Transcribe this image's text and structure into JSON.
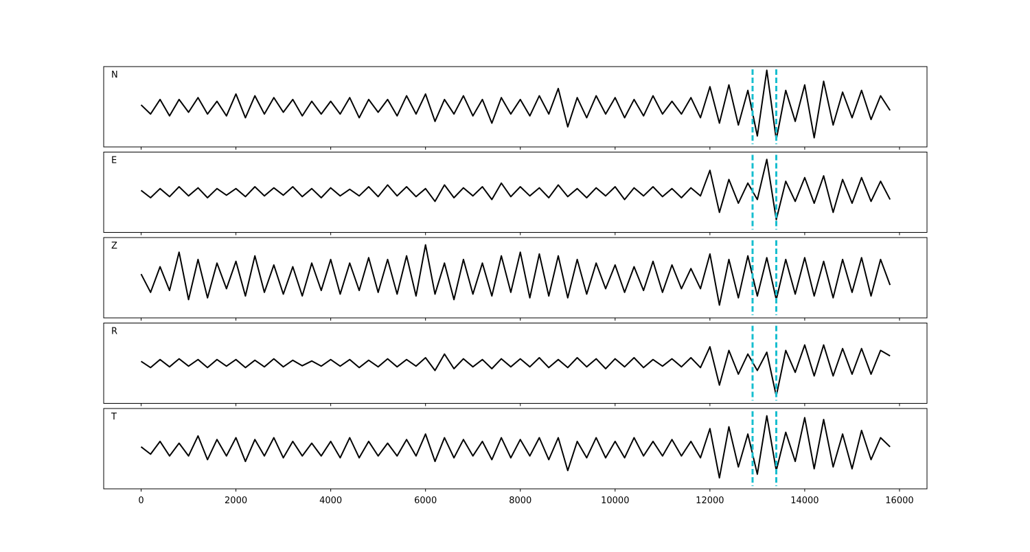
{
  "chart_data": {
    "type": "line",
    "x": [
      0,
      200,
      400,
      600,
      800,
      1000,
      1200,
      1400,
      1600,
      1800,
      2000,
      2200,
      2400,
      2600,
      2800,
      3000,
      3200,
      3400,
      3600,
      3800,
      4000,
      4200,
      4400,
      4600,
      4800,
      5000,
      5200,
      5400,
      5600,
      5800,
      6000,
      6200,
      6400,
      6600,
      6800,
      7000,
      7200,
      7400,
      7600,
      7800,
      8000,
      8200,
      8400,
      8600,
      8800,
      9000,
      9200,
      9400,
      9600,
      9800,
      10000,
      10200,
      10400,
      10600,
      10800,
      11000,
      11200,
      11400,
      11600,
      11800,
      12000,
      12200,
      12400,
      12600,
      12800,
      13000,
      13200,
      13400,
      13600,
      13800,
      14000,
      14200,
      14400,
      14600,
      14800,
      15000,
      15200,
      15400,
      15600,
      15800
    ],
    "series": [
      {
        "name": "N",
        "color": "#000000",
        "values": [
          0.05,
          -0.2,
          0.2,
          -0.25,
          0.2,
          -0.15,
          0.25,
          -0.2,
          0.15,
          -0.25,
          0.35,
          -0.3,
          0.3,
          -0.2,
          0.25,
          -0.15,
          0.2,
          -0.25,
          0.15,
          -0.2,
          0.15,
          -0.2,
          0.25,
          -0.3,
          0.2,
          -0.15,
          0.2,
          -0.25,
          0.3,
          -0.2,
          0.35,
          -0.4,
          0.2,
          -0.2,
          0.3,
          -0.25,
          0.2,
          -0.45,
          0.25,
          -0.2,
          0.2,
          -0.25,
          0.3,
          -0.2,
          0.5,
          -0.55,
          0.25,
          -0.3,
          0.3,
          -0.2,
          0.25,
          -0.3,
          0.2,
          -0.25,
          0.3,
          -0.2,
          0.15,
          -0.2,
          0.25,
          -0.3,
          0.55,
          -0.45,
          0.6,
          -0.5,
          0.45,
          -0.8,
          1.0,
          -0.9,
          0.45,
          -0.4,
          0.6,
          -0.85,
          0.7,
          -0.5,
          0.4,
          -0.3,
          0.45,
          -0.35,
          0.3,
          -0.1
        ]
      },
      {
        "name": "E",
        "color": "#000000",
        "values": [
          0.05,
          -0.15,
          0.1,
          -0.12,
          0.15,
          -0.1,
          0.12,
          -0.15,
          0.1,
          -0.08,
          0.1,
          -0.12,
          0.15,
          -0.1,
          0.12,
          -0.08,
          0.15,
          -0.12,
          0.1,
          -0.15,
          0.12,
          -0.1,
          0.08,
          -0.1,
          0.15,
          -0.12,
          0.2,
          -0.1,
          0.15,
          -0.12,
          0.1,
          -0.25,
          0.2,
          -0.15,
          0.12,
          -0.1,
          0.15,
          -0.2,
          0.25,
          -0.12,
          0.15,
          -0.1,
          0.12,
          -0.15,
          0.2,
          -0.12,
          0.1,
          -0.15,
          0.12,
          -0.1,
          0.15,
          -0.2,
          0.12,
          -0.1,
          0.15,
          -0.12,
          0.1,
          -0.15,
          0.12,
          -0.1,
          0.6,
          -0.55,
          0.35,
          -0.3,
          0.25,
          -0.2,
          0.9,
          -0.75,
          0.3,
          -0.25,
          0.4,
          -0.3,
          0.45,
          -0.55,
          0.35,
          -0.3,
          0.4,
          -0.25,
          0.3,
          -0.2
        ]
      },
      {
        "name": "Z",
        "color": "#000000",
        "values": [
          0.1,
          -0.4,
          0.3,
          -0.35,
          0.7,
          -0.6,
          0.5,
          -0.55,
          0.4,
          -0.3,
          0.45,
          -0.5,
          0.6,
          -0.4,
          0.35,
          -0.45,
          0.3,
          -0.5,
          0.4,
          -0.35,
          0.5,
          -0.45,
          0.4,
          -0.35,
          0.55,
          -0.4,
          0.5,
          -0.45,
          0.6,
          -0.5,
          0.9,
          -0.45,
          0.4,
          -0.6,
          0.5,
          -0.45,
          0.4,
          -0.5,
          0.6,
          -0.4,
          0.7,
          -0.55,
          0.65,
          -0.5,
          0.6,
          -0.55,
          0.5,
          -0.45,
          0.4,
          -0.3,
          0.35,
          -0.4,
          0.3,
          -0.35,
          0.45,
          -0.4,
          0.35,
          -0.3,
          0.25,
          -0.3,
          0.65,
          -0.75,
          0.5,
          -0.55,
          0.6,
          -0.5,
          0.55,
          -0.6,
          0.5,
          -0.45,
          0.55,
          -0.5,
          0.45,
          -0.55,
          0.5,
          -0.4,
          0.55,
          -0.5,
          0.5,
          -0.2
        ]
      },
      {
        "name": "R",
        "color": "#000000",
        "values": [
          0.05,
          -0.12,
          0.1,
          -0.1,
          0.12,
          -0.08,
          0.1,
          -0.12,
          0.1,
          -0.08,
          0.1,
          -0.12,
          0.08,
          -0.1,
          0.12,
          -0.1,
          0.08,
          -0.07,
          0.06,
          -0.08,
          0.1,
          -0.08,
          0.1,
          -0.12,
          0.08,
          -0.1,
          0.12,
          -0.1,
          0.1,
          -0.08,
          0.15,
          -0.2,
          0.25,
          -0.15,
          0.12,
          -0.1,
          0.1,
          -0.15,
          0.12,
          -0.1,
          0.12,
          -0.1,
          0.15,
          -0.12,
          0.1,
          -0.12,
          0.15,
          -0.1,
          0.12,
          -0.15,
          0.12,
          -0.1,
          0.15,
          -0.12,
          0.1,
          -0.08,
          0.12,
          -0.1,
          0.15,
          -0.12,
          0.45,
          -0.6,
          0.35,
          -0.3,
          0.25,
          -0.2,
          0.3,
          -0.9,
          0.35,
          -0.25,
          0.5,
          -0.35,
          0.5,
          -0.35,
          0.4,
          -0.3,
          0.4,
          -0.3,
          0.35,
          0.2
        ]
      },
      {
        "name": "T",
        "color": "#000000",
        "values": [
          0.05,
          -0.15,
          0.2,
          -0.2,
          0.15,
          -0.2,
          0.35,
          -0.3,
          0.25,
          -0.2,
          0.3,
          -0.35,
          0.25,
          -0.2,
          0.3,
          -0.25,
          0.2,
          -0.2,
          0.15,
          -0.2,
          0.2,
          -0.25,
          0.3,
          -0.25,
          0.2,
          -0.2,
          0.15,
          -0.2,
          0.25,
          -0.2,
          0.4,
          -0.35,
          0.3,
          -0.25,
          0.25,
          -0.2,
          0.2,
          -0.3,
          0.3,
          -0.25,
          0.25,
          -0.2,
          0.3,
          -0.3,
          0.3,
          -0.6,
          0.2,
          -0.25,
          0.3,
          -0.25,
          0.2,
          -0.25,
          0.3,
          -0.2,
          0.2,
          -0.2,
          0.25,
          -0.2,
          0.2,
          -0.25,
          0.55,
          -0.8,
          0.6,
          -0.5,
          0.4,
          -0.7,
          0.9,
          -0.6,
          0.45,
          -0.35,
          0.85,
          -0.55,
          0.8,
          -0.5,
          0.4,
          -0.55,
          0.5,
          -0.3,
          0.3,
          0.05
        ]
      }
    ],
    "xlim": [
      -790,
      16580
    ],
    "xticks": [
      0,
      2000,
      4000,
      6000,
      8000,
      10000,
      12000,
      14000,
      16000
    ],
    "ylim": [
      -1.1,
      1.1
    ],
    "vlines": [
      12900,
      13400
    ],
    "vline_color": "#17becf"
  }
}
